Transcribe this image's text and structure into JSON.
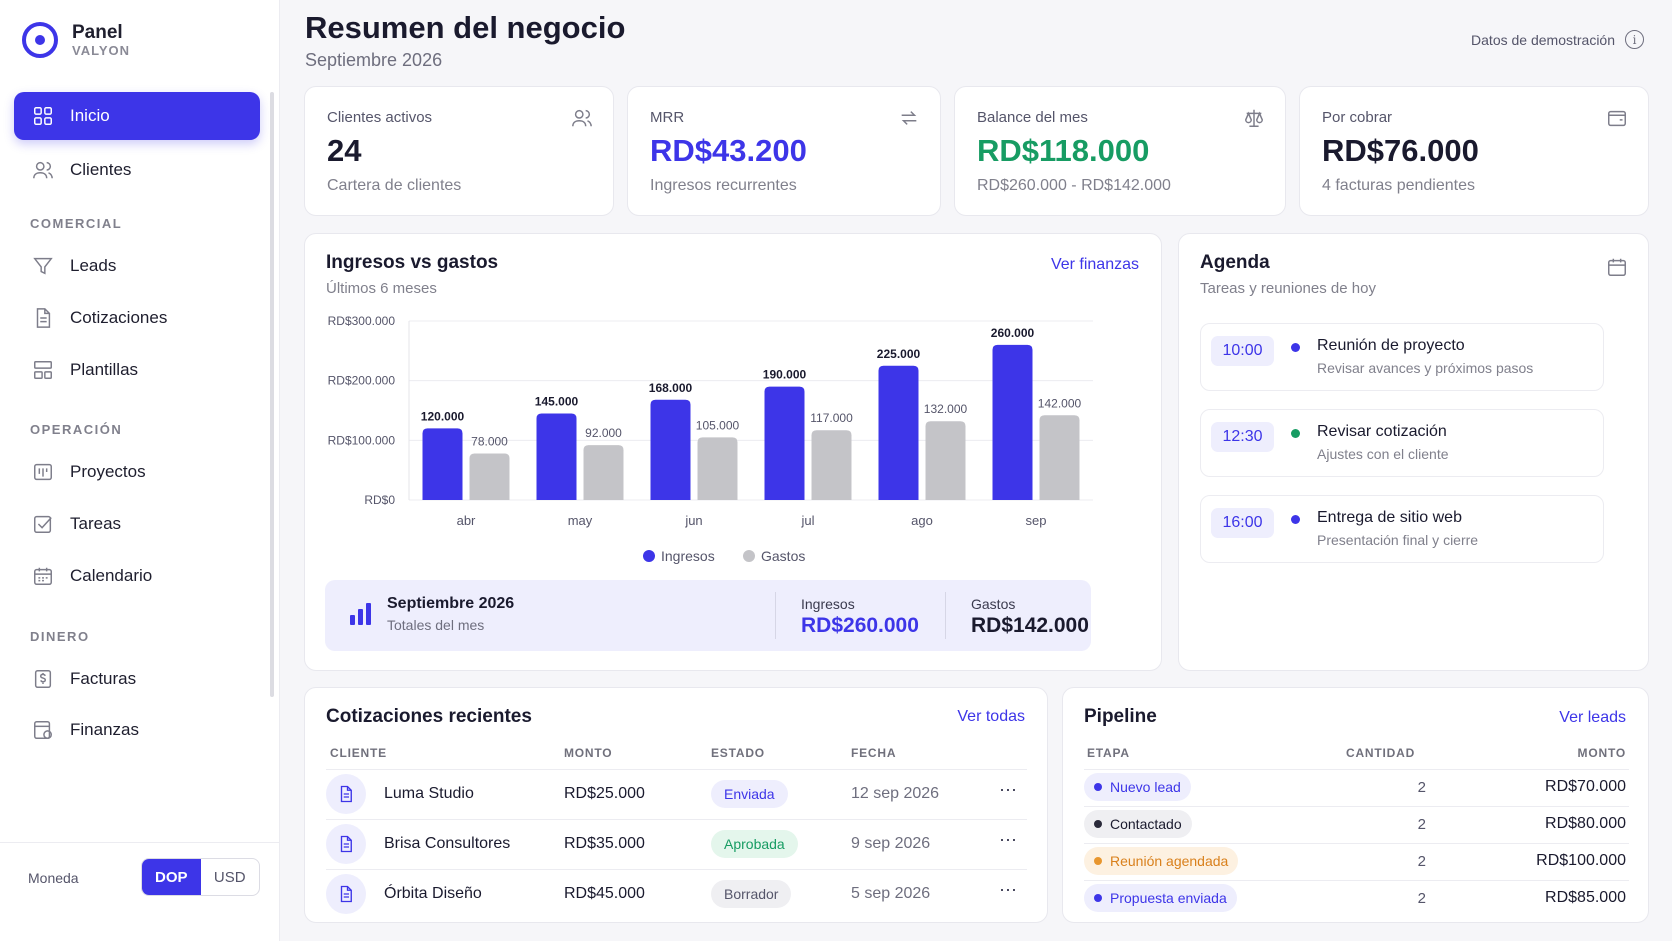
{
  "brand": {
    "title": "Panel",
    "subtitle": "VALYON"
  },
  "sidebar": {
    "items": [
      {
        "label": "Inicio"
      },
      {
        "label": "Clientes"
      },
      {
        "label": "Leads"
      },
      {
        "label": "Cotizaciones"
      },
      {
        "label": "Plantillas"
      },
      {
        "label": "Proyectos"
      },
      {
        "label": "Tareas"
      },
      {
        "label": "Calendario"
      },
      {
        "label": "Facturas"
      },
      {
        "label": "Finanzas"
      }
    ],
    "sections": [
      "COMERCIAL",
      "OPERACIÓN",
      "DINERO"
    ],
    "currency_label": "Moneda",
    "currency_options": [
      "DOP",
      "USD"
    ]
  },
  "header": {
    "title": "Resumen del negocio",
    "subtitle": "Septiembre 2026",
    "demo_label": "Datos de demostración"
  },
  "kpis": [
    {
      "label": "Clientes activos",
      "value": "24",
      "sub": "Cartera de clientes",
      "icon": "users-icon",
      "color": "#1a1a2e"
    },
    {
      "label": "MRR",
      "value": "RD$43.200",
      "sub": "Ingresos recurrentes",
      "icon": "repeat-icon",
      "color": "#3d35e8"
    },
    {
      "label": "Balance del mes",
      "value": "RD$118.000",
      "sub": "RD$260.000 - RD$142.000",
      "icon": "scale-icon",
      "color": "#179c63"
    },
    {
      "label": "Por cobrar",
      "value": "RD$76.000",
      "sub": "4 facturas pendientes",
      "icon": "wallet-icon",
      "color": "#1a1a2e"
    }
  ],
  "chart_card": {
    "title": "Ingresos vs gastos",
    "subtitle": "Últimos 6 meses",
    "link": "Ver finanzas"
  },
  "chart_data": {
    "type": "bar",
    "categories": [
      "abr",
      "may",
      "jun",
      "jul",
      "ago",
      "sep"
    ],
    "series": [
      {
        "name": "Ingresos",
        "values": [
          120000,
          145000,
          168000,
          190000,
          225000,
          260000
        ],
        "color": "#3d35e8",
        "labels": [
          "120.000",
          "145.000",
          "168.000",
          "190.000",
          "225.000",
          "260.000"
        ]
      },
      {
        "name": "Gastos",
        "values": [
          78000,
          92000,
          105000,
          117000,
          132000,
          142000
        ],
        "color": "#c4c4c8",
        "labels": [
          "78.000",
          "92.000",
          "105.000",
          "117.000",
          "132.000",
          "142.000"
        ]
      }
    ],
    "yticks": [
      {
        "value": 300000,
        "label": "RD$300.000"
      },
      {
        "value": 200000,
        "label": "RD$200.000"
      },
      {
        "value": 100000,
        "label": "RD$100.000"
      },
      {
        "value": 0,
        "label": "RD$0"
      }
    ],
    "ylim": [
      0,
      300000
    ],
    "legend": "bottom-center",
    "grid": true
  },
  "totals": {
    "title": "Septiembre 2026",
    "subtitle": "Totales del mes",
    "income_label": "Ingresos",
    "income_value": "RD$260.000",
    "expense_label": "Gastos",
    "expense_value": "RD$142.000"
  },
  "agenda": {
    "title": "Agenda",
    "subtitle": "Tareas y reuniones de hoy",
    "items": [
      {
        "time": "10:00",
        "title": "Reunión de proyecto",
        "desc": "Revisar avances y próximos pasos",
        "dot": "#3d35e8"
      },
      {
        "time": "12:30",
        "title": "Revisar cotización",
        "desc": "Ajustes con el cliente",
        "dot": "#179c63"
      },
      {
        "time": "16:00",
        "title": "Entrega de sitio web",
        "desc": "Presentación final y cierre",
        "dot": "#3d35e8"
      }
    ]
  },
  "quotes": {
    "title": "Cotizaciones recientes",
    "link": "Ver todas",
    "headers": [
      "CLIENTE",
      "MONTO",
      "ESTADO",
      "FECHA"
    ],
    "rows": [
      {
        "client": "Luma Studio",
        "amount": "RD$25.000",
        "status": "Enviada",
        "date": "12 sep 2026"
      },
      {
        "client": "Brisa Consultores",
        "amount": "RD$35.000",
        "status": "Aprobada",
        "date": "9 sep 2026"
      },
      {
        "client": "Órbita Diseño",
        "amount": "RD$45.000",
        "status": "Borrador",
        "date": "5 sep 2026"
      }
    ]
  },
  "pipeline": {
    "title": "Pipeline",
    "link": "Ver leads",
    "headers": [
      "ETAPA",
      "CANTIDAD",
      "MONTO"
    ],
    "rows": [
      {
        "stage": "Nuevo lead",
        "count": "2",
        "amount": "RD$70.000"
      },
      {
        "stage": "Contactado",
        "count": "2",
        "amount": "RD$80.000"
      },
      {
        "stage": "Reunión agendada",
        "count": "2",
        "amount": "RD$100.000"
      },
      {
        "stage": "Propuesta enviada",
        "count": "2",
        "amount": "RD$85.000"
      }
    ]
  }
}
